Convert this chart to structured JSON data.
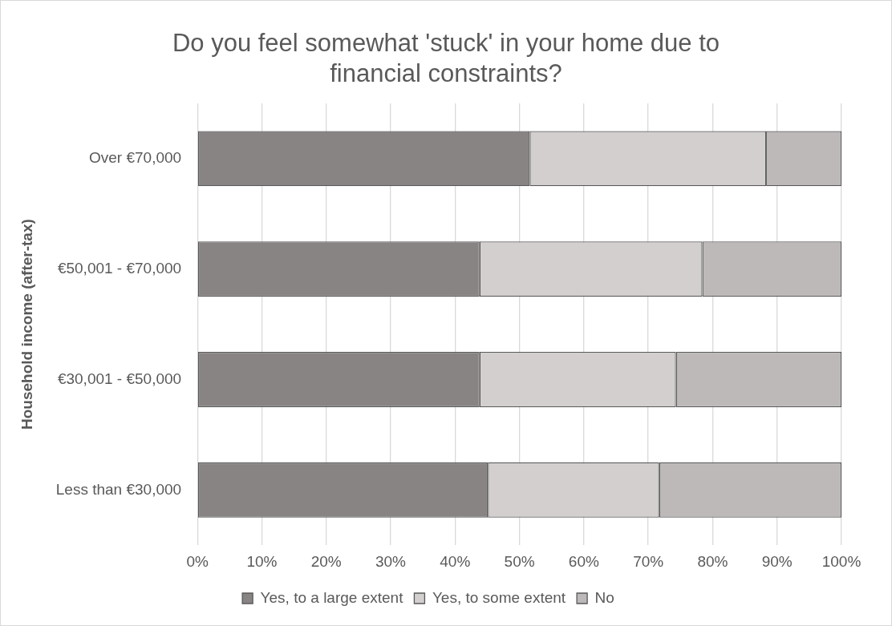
{
  "chart_data": {
    "type": "bar",
    "orientation": "horizontal",
    "stacked": true,
    "title": "Do you feel somewhat 'stuck' in your home due to financial constraints?",
    "ylabel": "Household income (after-tax)",
    "categories": [
      "Over €70,000",
      "€50,001 - €70,000",
      "€30,001 - €50,000",
      "Less than €30,000"
    ],
    "series": [
      {
        "name": "Yes, to a large extent",
        "color": "#888483",
        "values": [
          51.6,
          43.8,
          43.8,
          45.1
        ]
      },
      {
        "name": "Yes, to some extent",
        "color": "#d2cfce",
        "values": [
          36.7,
          34.6,
          30.5,
          26.6
        ]
      },
      {
        "name": "No",
        "color": "#bdb9b8",
        "values": [
          11.7,
          21.6,
          25.7,
          28.3
        ]
      }
    ],
    "xlim": [
      0,
      100
    ],
    "xticks": [
      {
        "value": 0,
        "label": "0%"
      },
      {
        "value": 10,
        "label": "10%"
      },
      {
        "value": 20,
        "label": "20%"
      },
      {
        "value": 30,
        "label": "30%"
      },
      {
        "value": 40,
        "label": "40%"
      },
      {
        "value": 50,
        "label": "50%"
      },
      {
        "value": 60,
        "label": "60%"
      },
      {
        "value": 70,
        "label": "70%"
      },
      {
        "value": 80,
        "label": "80%"
      },
      {
        "value": 90,
        "label": "90%"
      },
      {
        "value": 100,
        "label": "100%"
      }
    ],
    "grid": "x",
    "legend": "bottom"
  }
}
